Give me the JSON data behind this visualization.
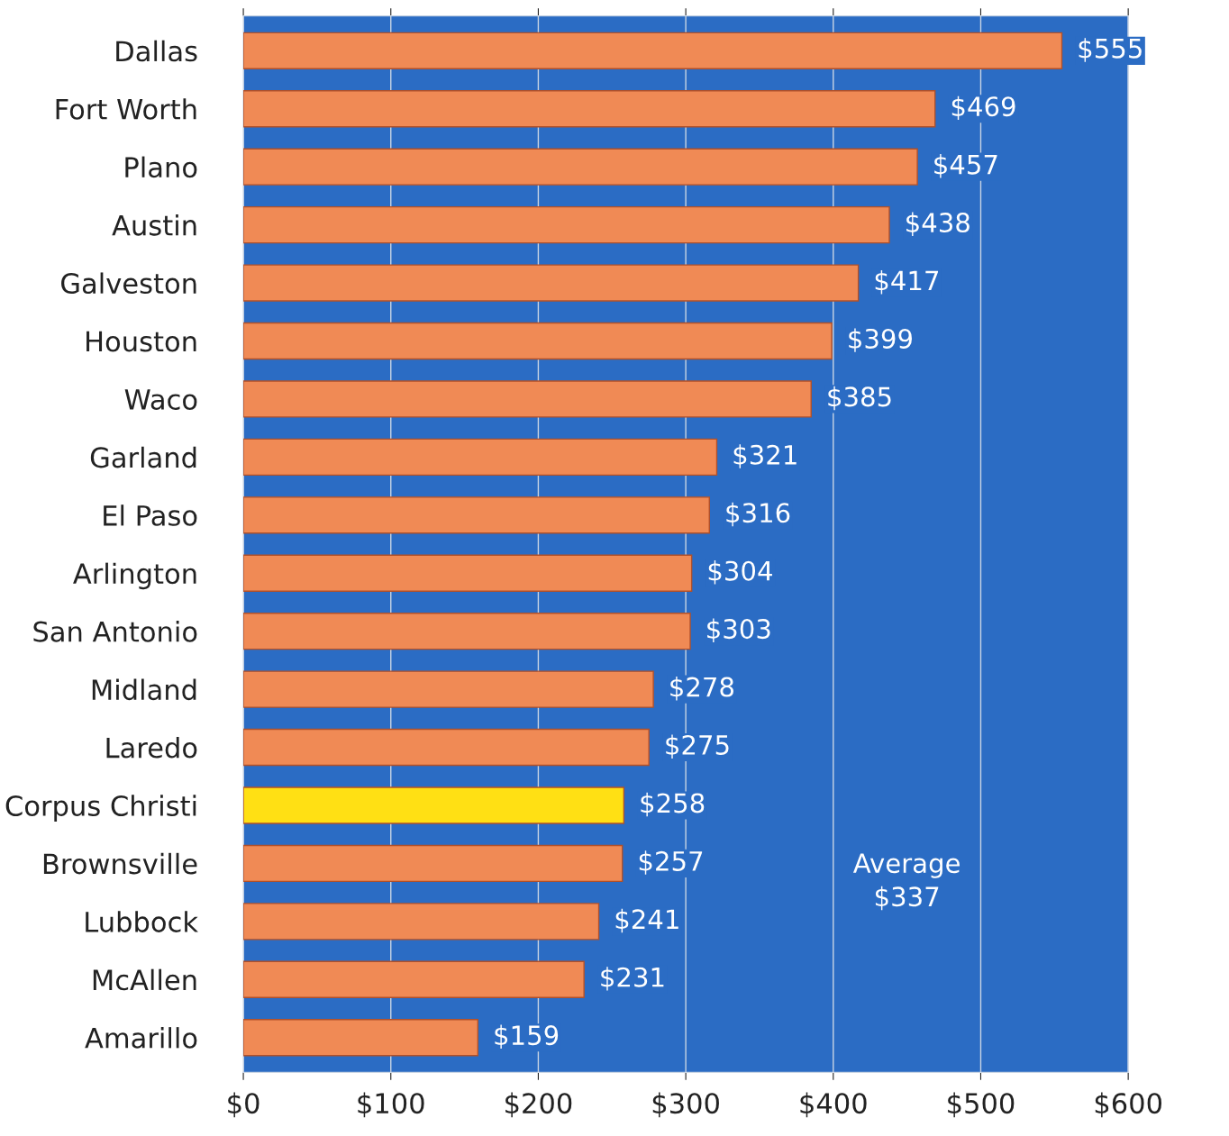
{
  "chart_data": {
    "type": "bar",
    "orientation": "horizontal",
    "categories": [
      "Dallas",
      "Fort Worth",
      "Plano",
      "Austin",
      "Galveston",
      "Houston",
      "Waco",
      "Garland",
      "El Paso",
      "Arlington",
      "San Antonio",
      "Midland",
      "Laredo",
      "Corpus Christi",
      "Brownsville",
      "Lubbock",
      "McAllen",
      "Amarillo"
    ],
    "values": [
      555,
      469,
      457,
      438,
      417,
      399,
      385,
      321,
      316,
      304,
      303,
      278,
      275,
      258,
      257,
      241,
      231,
      159
    ],
    "colors": [
      "#f08a55",
      "#f08a55",
      "#f08a55",
      "#f08a55",
      "#f08a55",
      "#f08a55",
      "#f08a55",
      "#f08a55",
      "#f08a55",
      "#f08a55",
      "#f08a55",
      "#f08a55",
      "#f08a55",
      "#ffe014",
      "#f08a55",
      "#f08a55",
      "#f08a55",
      "#f08a55"
    ],
    "value_labels": [
      "$555",
      "$469",
      "$457",
      "$438",
      "$417",
      "$399",
      "$385",
      "$321",
      "$316",
      "$304",
      "$303",
      "$278",
      "$275",
      "$258",
      "$257",
      "$241",
      "$231",
      "$159"
    ],
    "xlim": [
      0,
      600
    ],
    "xticks": [
      {
        "value": 0,
        "label": "$0"
      },
      {
        "value": 100,
        "label": "$100"
      },
      {
        "value": 200,
        "label": "$200"
      },
      {
        "value": 300,
        "label": "$300"
      },
      {
        "value": 400,
        "label": "$400"
      },
      {
        "value": 500,
        "label": "$500"
      },
      {
        "value": 600,
        "label": "$600"
      }
    ],
    "grid": "x",
    "annotations": [
      "Average\n$337"
    ]
  }
}
